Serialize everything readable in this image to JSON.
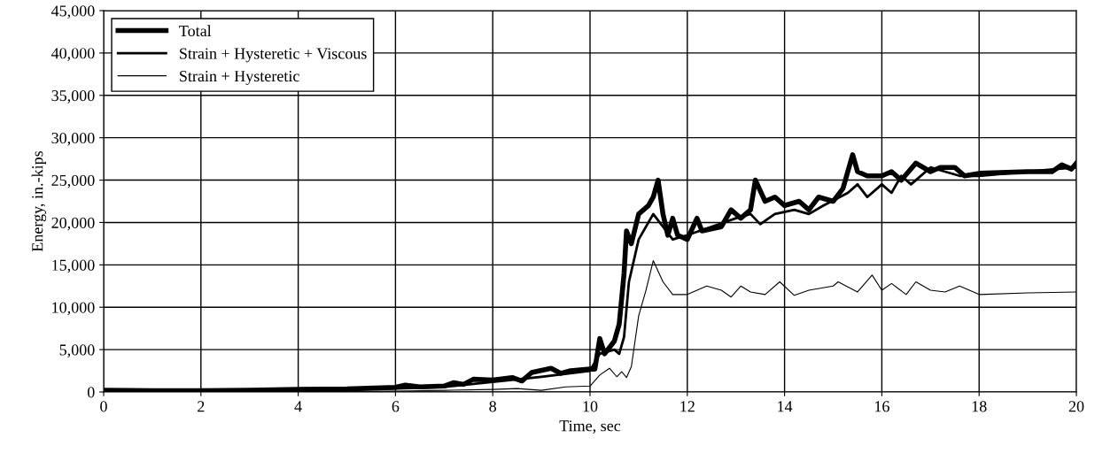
{
  "chart_data": {
    "type": "line",
    "xlabel": "Time, sec",
    "ylabel": "Energy, in.-kips",
    "xlim": [
      0,
      20
    ],
    "ylim": [
      0,
      45000
    ],
    "xticks": [
      0,
      2,
      4,
      6,
      8,
      10,
      12,
      14,
      16,
      18,
      20
    ],
    "yticks": [
      {
        "value": 0,
        "label": "0"
      },
      {
        "value": 5000,
        "label": "5,000"
      },
      {
        "value": 10000,
        "label": "10,000"
      },
      {
        "value": 15000,
        "label": "15,000"
      },
      {
        "value": 20000,
        "label": "20,000"
      },
      {
        "value": 25000,
        "label": "25,000"
      },
      {
        "value": 30000,
        "label": "30,000"
      },
      {
        "value": 35000,
        "label": "35,000"
      },
      {
        "value": 40000,
        "label": "40,000"
      },
      {
        "value": 45000,
        "label": "45,000"
      }
    ],
    "grid": true,
    "legend": "top left",
    "marker": "none",
    "line_style": "solid",
    "series": [
      {
        "name": "Total",
        "color": "#000000",
        "x": [
          0,
          1,
          2,
          3,
          4,
          5,
          6,
          6.2,
          6.5,
          7,
          7.2,
          7.4,
          7.6,
          8,
          8.4,
          8.6,
          8.8,
          9.2,
          9.4,
          9.6,
          10,
          10.1,
          10.2,
          10.3,
          10.5,
          10.6,
          10.7,
          10.75,
          10.85,
          11,
          11.2,
          11.3,
          11.4,
          11.5,
          11.6,
          11.7,
          11.8,
          12,
          12.2,
          12.3,
          12.7,
          12.9,
          13.1,
          13.3,
          13.4,
          13.6,
          13.8,
          14,
          14.3,
          14.5,
          14.7,
          15,
          15.2,
          15.4,
          15.5,
          15.7,
          16,
          16.2,
          16.4,
          16.7,
          17,
          17.2,
          17.5,
          17.7,
          18,
          19,
          19.5,
          19.7,
          19.9,
          20
        ],
        "values": [
          200,
          150,
          150,
          200,
          300,
          350,
          550,
          800,
          600,
          700,
          1100,
          900,
          1500,
          1400,
          1700,
          1300,
          2300,
          2800,
          2200,
          2500,
          2700,
          2700,
          6300,
          4500,
          6000,
          8000,
          14000,
          19000,
          17500,
          21000,
          22000,
          23000,
          25000,
          21000,
          18500,
          20500,
          18500,
          18000,
          20500,
          19000,
          19500,
          21500,
          20500,
          21500,
          25000,
          22500,
          23000,
          22000,
          22500,
          21500,
          23000,
          22500,
          24000,
          28000,
          26000,
          25500,
          25500,
          26000,
          25000,
          27000,
          26000,
          26500,
          26500,
          25500,
          25800,
          26000,
          26000,
          26800,
          26300,
          27000
        ]
      },
      {
        "name": "Strain + Hysteretic + Viscous",
        "color": "#000000",
        "x": [
          0,
          4,
          6,
          7,
          8,
          9,
          10,
          10.2,
          10.5,
          10.6,
          10.7,
          10.8,
          11,
          11.3,
          11.5,
          11.7,
          12,
          12.5,
          13,
          13.3,
          13.5,
          13.8,
          14.2,
          14.5,
          14.8,
          15.3,
          15.5,
          15.7,
          16,
          16.2,
          16.4,
          16.6,
          17,
          17.3,
          17.6,
          18,
          19,
          20
        ],
        "values": [
          100,
          200,
          400,
          600,
          1200,
          1800,
          2500,
          4500,
          5000,
          4500,
          6500,
          13000,
          18000,
          21000,
          19500,
          18000,
          18500,
          19500,
          20500,
          21000,
          19800,
          21000,
          21500,
          21000,
          22000,
          23500,
          24500,
          23000,
          24500,
          23500,
          25500,
          24500,
          26500,
          26000,
          25500,
          25500,
          26000,
          26500
        ]
      },
      {
        "name": "Strain + Hysteretic",
        "color": "#000000",
        "x": [
          0,
          6,
          7,
          8,
          8.5,
          9,
          9.5,
          10,
          10.2,
          10.4,
          10.55,
          10.65,
          10.75,
          10.85,
          11,
          11.15,
          11.3,
          11.5,
          11.7,
          12,
          12.4,
          12.7,
          12.9,
          13.1,
          13.3,
          13.6,
          13.9,
          14.2,
          14.5,
          15,
          15.1,
          15.5,
          15.8,
          16,
          16.2,
          16.5,
          16.7,
          17,
          17.3,
          17.6,
          18,
          19,
          20
        ],
        "values": [
          0,
          100,
          200,
          300,
          400,
          200,
          600,
          700,
          2000,
          2800,
          1800,
          2400,
          1700,
          3000,
          9000,
          12000,
          15500,
          13000,
          11500,
          11500,
          12500,
          12000,
          11200,
          12500,
          11800,
          11500,
          13000,
          11400,
          12000,
          12500,
          13000,
          11800,
          13800,
          12000,
          12800,
          11500,
          13000,
          12000,
          11800,
          12500,
          11500,
          11700,
          11800
        ]
      }
    ]
  }
}
